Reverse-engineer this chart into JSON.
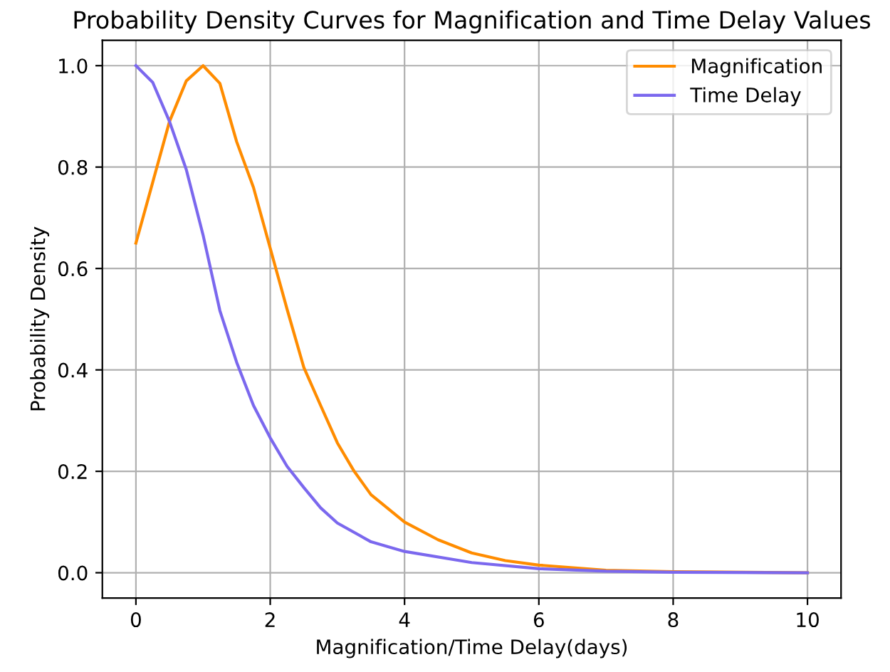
{
  "chart_data": {
    "type": "line",
    "title": "Probability Density Curves for Magnification and Time Delay Values",
    "xlabel": "Magnification/Time Delay(days)",
    "ylabel": "Probability Density",
    "series": [
      {
        "name": "Magnification",
        "color": "#ff8c00",
        "x": [
          0,
          0.25,
          0.5,
          0.75,
          1,
          1.25,
          1.5,
          1.75,
          2,
          2.25,
          2.5,
          2.75,
          3,
          3.25,
          3.5,
          4,
          4.5,
          5,
          5.5,
          6,
          7,
          8,
          10
        ],
        "values": [
          0.65,
          0.77,
          0.89,
          0.97,
          1.0,
          0.965,
          0.85,
          0.76,
          0.64,
          0.52,
          0.405,
          0.33,
          0.256,
          0.2,
          0.154,
          0.1,
          0.065,
          0.039,
          0.024,
          0.015,
          0.005,
          0.002,
          0
        ]
      },
      {
        "name": "Time Delay",
        "color": "#7b68ee",
        "x": [
          0,
          0.25,
          0.5,
          0.75,
          1,
          1.25,
          1.5,
          1.75,
          2,
          2.25,
          2.5,
          2.75,
          3,
          3.5,
          4,
          5,
          6,
          7,
          8,
          10
        ],
        "values": [
          1.0,
          0.967,
          0.89,
          0.795,
          0.666,
          0.517,
          0.415,
          0.33,
          0.266,
          0.21,
          0.168,
          0.128,
          0.098,
          0.061,
          0.042,
          0.02,
          0.008,
          0.003,
          0.001,
          0
        ]
      }
    ],
    "xlim": [
      -0.5,
      10.5
    ],
    "ylim": [
      -0.05,
      1.05
    ],
    "xticks": [
      0,
      2,
      4,
      6,
      8,
      10
    ],
    "yticks": [
      {
        "value": 0,
        "label": "0.0"
      },
      {
        "value": 0.2,
        "label": "0.2"
      },
      {
        "value": 0.4,
        "label": "0.4"
      },
      {
        "value": 0.6,
        "label": "0.6"
      },
      {
        "value": 0.8,
        "label": "0.8"
      },
      {
        "value": 1.0,
        "label": "1.0"
      }
    ],
    "grid": true,
    "legend": "top right"
  }
}
